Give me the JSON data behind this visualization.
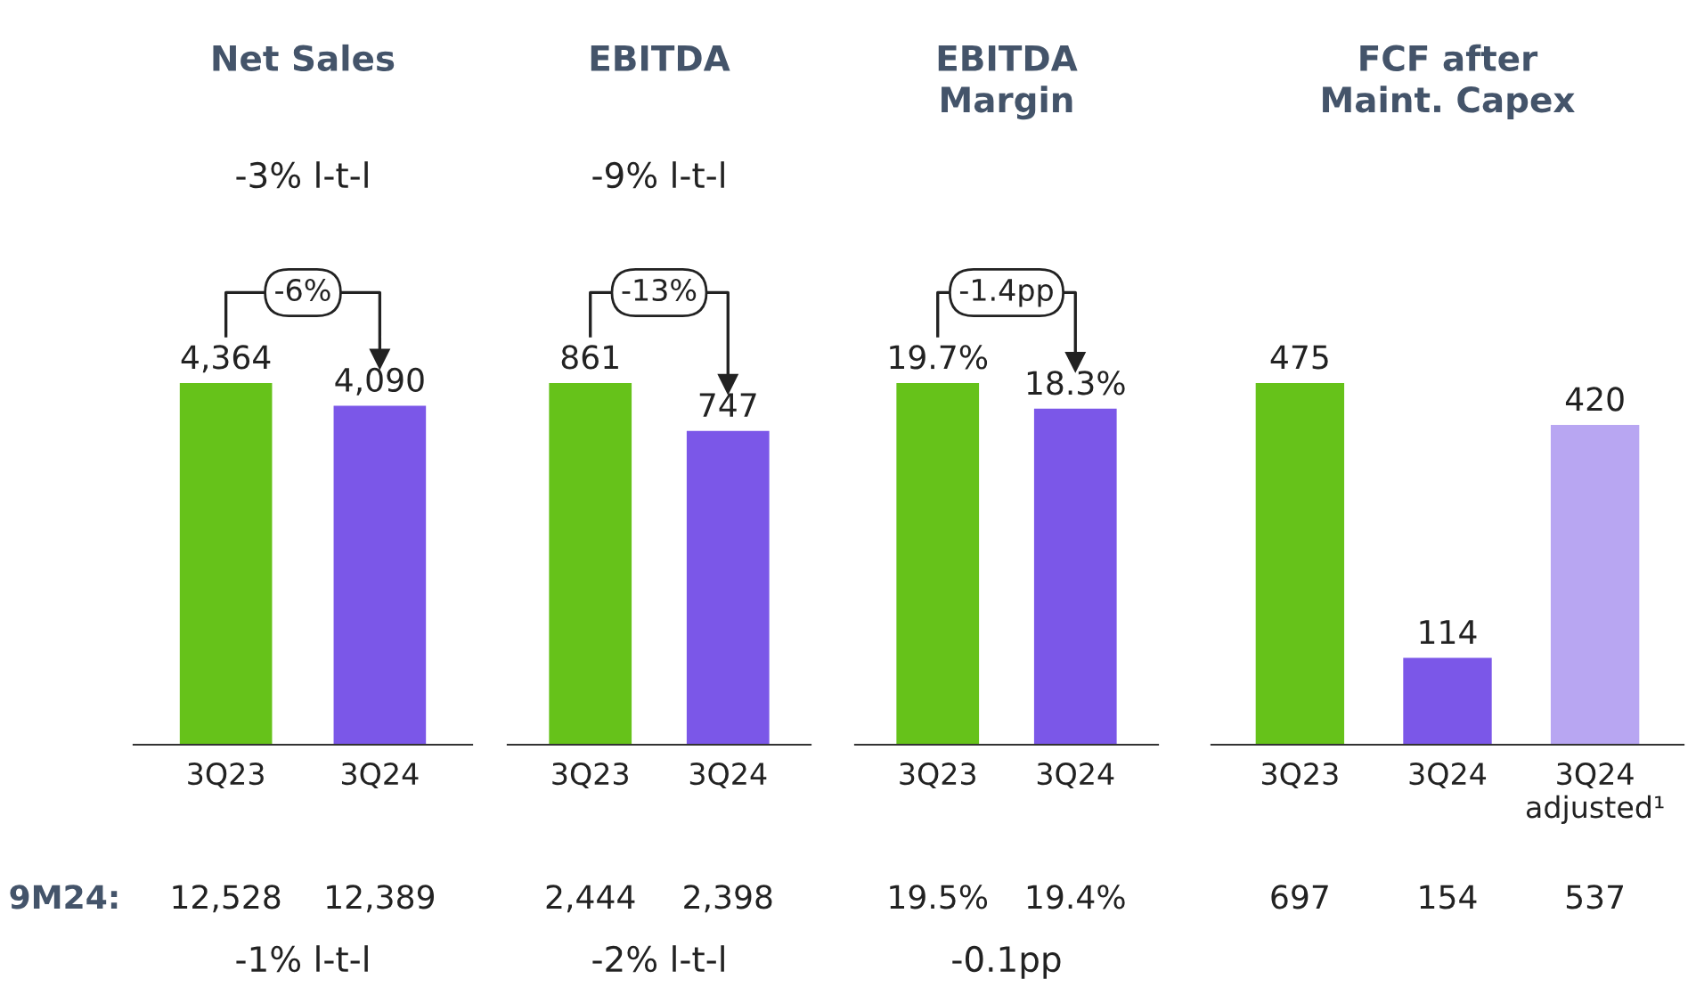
{
  "chart_data": [
    {
      "type": "bar",
      "title": "Net Sales",
      "categories": [
        "3Q23",
        "3Q24"
      ],
      "values": [
        4364,
        4090
      ],
      "value_labels": [
        "4,364",
        "4,090"
      ],
      "colors": [
        "#66c21a",
        "#7b57e8"
      ],
      "tick_labels": "x",
      "annotations": [
        "9M24:",
        "-3% l-t-l",
        "-6%",
        "12,528",
        "12,389",
        "-1% l-t-l"
      ]
    },
    {
      "type": "bar",
      "title": "EBITDA",
      "categories": [
        "3Q23",
        "3Q24"
      ],
      "values": [
        861,
        747
      ],
      "value_labels": [
        "861",
        "747"
      ],
      "colors": [
        "#66c21a",
        "#7b57e8"
      ],
      "tick_labels": "x",
      "annotations": [
        "-9% l-t-l",
        "-13%",
        "2,444",
        "2,398",
        "-2% l-t-l"
      ]
    },
    {
      "type": "bar",
      "title": "EBITDA\nMargin",
      "categories": [
        "3Q23",
        "3Q24"
      ],
      "values": [
        19.7,
        18.3
      ],
      "value_labels": [
        "19.7%",
        "18.3%"
      ],
      "colors": [
        "#66c21a",
        "#7b57e8"
      ],
      "tick_labels": "x",
      "annotations": [
        "-1.4pp",
        "19.5%",
        "19.4%",
        "-0.1pp"
      ]
    },
    {
      "type": "bar",
      "title": "FCF after\nMaint. Capex",
      "categories": [
        "3Q23",
        "3Q24",
        "3Q24\nadjusted¹"
      ],
      "values": [
        475,
        114,
        420
      ],
      "value_labels": [
        "475",
        "114",
        "420"
      ],
      "colors": [
        "#66c21a",
        "#7b57e8",
        "#b8a6f2"
      ],
      "tick_labels": "x",
      "annotations": [
        "697",
        "154",
        "537"
      ]
    }
  ]
}
